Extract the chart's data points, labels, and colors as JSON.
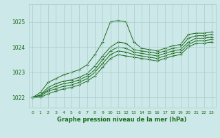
{
  "title": "Graphe pression niveau de la mer (hPa)",
  "bg_color": "#cce8e8",
  "grid_color": "#aacccc",
  "line_color": "#1a6b1a",
  "x_min": -0.5,
  "x_max": 23.5,
  "y_min": 1021.6,
  "y_max": 1025.7,
  "y_ticks": [
    1022,
    1023,
    1024,
    1025
  ],
  "x_ticks": [
    0,
    1,
    2,
    3,
    4,
    5,
    6,
    7,
    8,
    9,
    10,
    11,
    12,
    13,
    14,
    15,
    16,
    17,
    18,
    19,
    20,
    21,
    22,
    23
  ],
  "series": [
    [
      1022.0,
      1022.2,
      1022.6,
      1022.75,
      1022.9,
      1023.0,
      1023.1,
      1023.3,
      1023.7,
      1024.2,
      1025.0,
      1025.05,
      1025.0,
      1024.2,
      1023.95,
      1023.9,
      1023.85,
      1023.95,
      1024.05,
      1024.1,
      1024.5,
      1024.55,
      1024.55,
      1024.6
    ],
    [
      1022.0,
      1022.1,
      1022.4,
      1022.55,
      1022.65,
      1022.7,
      1022.8,
      1022.95,
      1023.25,
      1023.65,
      1024.0,
      1024.2,
      1024.15,
      1023.9,
      1023.85,
      1023.8,
      1023.75,
      1023.85,
      1023.95,
      1024.0,
      1024.35,
      1024.45,
      1024.45,
      1024.5
    ],
    [
      1022.0,
      1022.1,
      1022.3,
      1022.45,
      1022.55,
      1022.6,
      1022.7,
      1022.85,
      1023.1,
      1023.5,
      1023.85,
      1024.0,
      1023.95,
      1023.8,
      1023.75,
      1023.7,
      1023.65,
      1023.75,
      1023.85,
      1023.9,
      1024.2,
      1024.35,
      1024.35,
      1024.4
    ],
    [
      1022.0,
      1022.05,
      1022.25,
      1022.35,
      1022.45,
      1022.5,
      1022.6,
      1022.75,
      1023.0,
      1023.35,
      1023.7,
      1023.85,
      1023.8,
      1023.7,
      1023.65,
      1023.6,
      1023.55,
      1023.65,
      1023.75,
      1023.8,
      1024.1,
      1024.25,
      1024.25,
      1024.3
    ],
    [
      1022.0,
      1022.0,
      1022.15,
      1022.25,
      1022.35,
      1022.4,
      1022.5,
      1022.65,
      1022.85,
      1023.2,
      1023.55,
      1023.7,
      1023.65,
      1023.6,
      1023.55,
      1023.5,
      1023.45,
      1023.55,
      1023.65,
      1023.7,
      1024.0,
      1024.15,
      1024.15,
      1024.2
    ]
  ]
}
